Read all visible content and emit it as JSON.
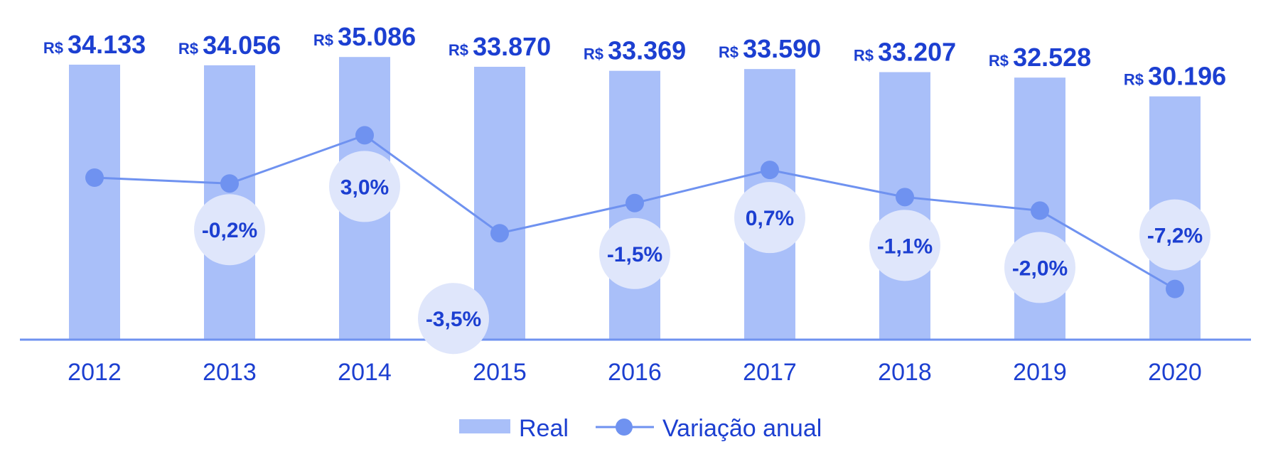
{
  "chart_data": {
    "type": "bar",
    "categories": [
      "2012",
      "2013",
      "2014",
      "2015",
      "2016",
      "2017",
      "2018",
      "2019",
      "2020"
    ],
    "series": [
      {
        "name": "Real",
        "type": "bar",
        "values": [
          34133,
          34056,
          35086,
          33870,
          33369,
          33590,
          33207,
          32528,
          30196
        ],
        "labels": [
          "34.133",
          "34.056",
          "35.086",
          "33.870",
          "33.369",
          "33.590",
          "33.207",
          "32.528",
          "30.196"
        ],
        "label_prefix": "R$",
        "color": "#a9bff9"
      },
      {
        "name": "Variação anual",
        "type": "line",
        "values": [
          null,
          -0.2,
          3.0,
          -3.5,
          -1.5,
          0.7,
          -1.1,
          -2.0,
          -7.2
        ],
        "labels": [
          "",
          "-0,2%",
          "3,0%",
          "-3,5%",
          "-1,5%",
          "0,7%",
          "-1,1%",
          "-2,0%",
          "-7,2%"
        ],
        "color": "#6f92f0"
      }
    ],
    "bubble_color": "#dfe6fb",
    "text_color": "#1c3fd1",
    "axis_color": "#6f92f0",
    "legend": {
      "position": "bottom-center",
      "entries": [
        "Real",
        "Variação anual"
      ]
    },
    "grid": false
  }
}
